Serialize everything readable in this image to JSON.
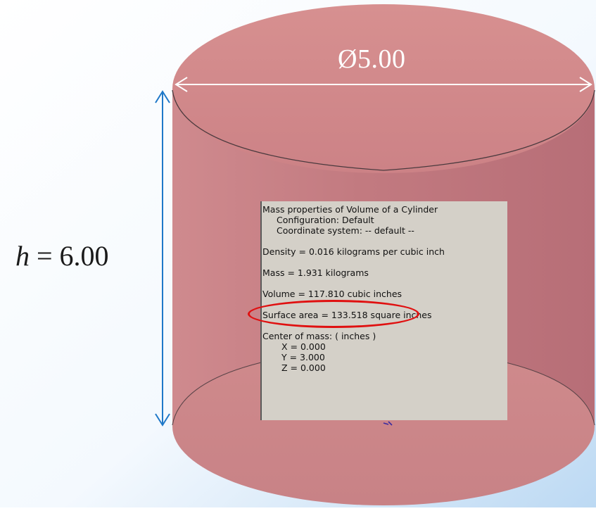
{
  "dimensions": {
    "diameter": "Ø5.00",
    "height_symbol": "h",
    "height_rest": " = 6.00"
  },
  "mass_properties": {
    "title": "Mass properties of Volume of a Cylinder",
    "configuration": "Configuration: Default",
    "coordinate_system": "Coordinate system: -- default --",
    "density": "Density = 0.016 kilograms per cubic inch",
    "mass": "Mass = 1.931 kilograms",
    "volume": "Volume = 117.810 cubic inches",
    "surface_area": "Surface area = 133.518 square inches",
    "center_of_mass": "Center of mass: ( inches )",
    "x": "X = 0.000",
    "y": "Y = 3.000",
    "z": "Z = 0.000"
  },
  "colors": {
    "cylinder_body": "#c4787e",
    "cylinder_top": "#d38c8c",
    "dimension_arrow_vertical": "#1f78c8",
    "dimension_arrow_horizontal": "#ffffff",
    "highlight": "#e01010",
    "panel_background": "#d4d0c8"
  }
}
